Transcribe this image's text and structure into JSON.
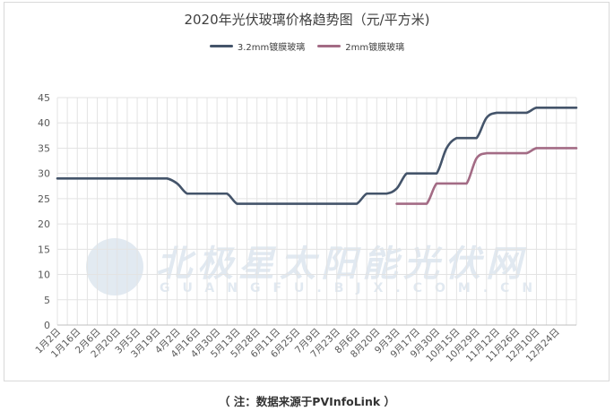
{
  "chart_data": {
    "type": "line",
    "title": "2020年光伏玻璃价格趋势图（元/平方米)",
    "xlabel": "",
    "ylabel": "",
    "ylim": [
      0,
      45
    ],
    "yticks": [
      0,
      5,
      10,
      15,
      20,
      25,
      30,
      35,
      40,
      45
    ],
    "grid": true,
    "legend": "top",
    "categories": [
      "1月2日",
      "1月16日",
      "2月6日",
      "2月20日",
      "3月5日",
      "3月19日",
      "4月2日",
      "4月16日",
      "4月30日",
      "5月13日",
      "5月28日",
      "6月11日",
      "6月25日",
      "7月9日",
      "7月23日",
      "8月6日",
      "8月20日",
      "9月3日",
      "9月17日",
      "9月30日",
      "10月15日",
      "10月29日",
      "11月12日",
      "11月26日",
      "12月10日",
      "12月24日"
    ],
    "series": [
      {
        "name": "3.2mm镀膜玻璃",
        "color": "#44546a",
        "x": [
          0,
          2,
          4,
          6,
          8,
          10,
          11,
          12,
          13,
          14,
          15,
          16,
          17,
          18,
          19,
          20,
          21,
          22,
          23,
          24,
          25,
          26,
          27,
          28,
          29,
          30,
          31,
          32,
          33,
          34,
          35,
          36,
          37,
          38,
          39,
          40,
          41,
          42,
          43,
          44,
          45,
          46,
          47,
          48,
          49,
          50,
          51,
          52
        ],
        "values": [
          29,
          29,
          29,
          29,
          29,
          29,
          29,
          28,
          26,
          26,
          26,
          26,
          26,
          24,
          24,
          24,
          24,
          24,
          24,
          24,
          24,
          24,
          24,
          24,
          24,
          24,
          26,
          26,
          26,
          27,
          30,
          30,
          30,
          30,
          35,
          37,
          37,
          37,
          41,
          42,
          42,
          42,
          42,
          43,
          43,
          43,
          43,
          43
        ]
      },
      {
        "name": "2mm镀膜玻璃",
        "color": "#a36b85",
        "x": [
          34,
          35,
          36,
          37,
          38,
          39,
          40,
          41,
          42,
          43,
          44,
          45,
          46,
          47,
          48,
          49,
          50,
          51,
          52
        ],
        "values": [
          24,
          24,
          24,
          24,
          28,
          28,
          28,
          28,
          33,
          34,
          34,
          34,
          34,
          34,
          35,
          35,
          35,
          35,
          35
        ]
      }
    ]
  },
  "watermark": {
    "cn": "北极星太阳能光伏网",
    "en": "GUANGFU.BJX.COM.CN"
  },
  "footnote": "（ 注：数据来源于PVInfoLink ）"
}
